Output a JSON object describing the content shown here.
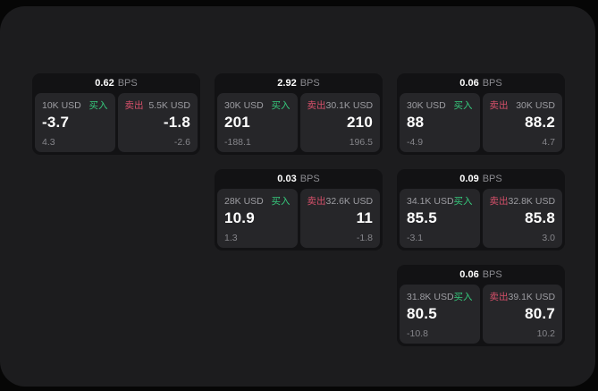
{
  "colors": {
    "page_background": "#060606",
    "window_background": "#1c1c1e",
    "card_background": "#121214",
    "panel_background": "#262629",
    "buy_accent": "#36c97c",
    "sell_accent": "#d6506a",
    "primary_text": "#ffffff",
    "muted_text": "#8b8b90"
  },
  "cards": [
    {
      "bps": "0.62",
      "unit": "BPS",
      "layout": {
        "row": 1,
        "col": 1
      },
      "buy": {
        "amount": "10K USD",
        "label": "买入",
        "value": "-3.7",
        "delta": "4.3"
      },
      "sell": {
        "label": "卖出",
        "amount": "5.5K USD",
        "value": "-1.8",
        "delta": "-2.6"
      }
    },
    {
      "bps": "2.92",
      "unit": "BPS",
      "layout": {
        "row": 1,
        "col": 2
      },
      "buy": {
        "amount": "30K USD",
        "label": "买入",
        "value": "201",
        "delta": "-188.1"
      },
      "sell": {
        "label": "卖出",
        "amount": "30.1K USD",
        "value": "210",
        "delta": "196.5"
      }
    },
    {
      "bps": "0.06",
      "unit": "BPS",
      "layout": {
        "row": 1,
        "col": 3
      },
      "buy": {
        "amount": "30K USD",
        "label": "买入",
        "value": "88",
        "delta": "-4.9"
      },
      "sell": {
        "label": "卖出",
        "amount": "30K USD",
        "value": "88.2",
        "delta": "4.7"
      }
    },
    {
      "bps": "0.03",
      "unit": "BPS",
      "layout": {
        "row": 2,
        "col": 2
      },
      "buy": {
        "amount": "28K USD",
        "label": "买入",
        "value": "10.9",
        "delta": "1.3"
      },
      "sell": {
        "label": "卖出",
        "amount": "32.6K USD",
        "value": "11",
        "delta": "-1.8"
      }
    },
    {
      "bps": "0.09",
      "unit": "BPS",
      "layout": {
        "row": 2,
        "col": 3
      },
      "buy": {
        "amount": "34.1K USD",
        "label": "买入",
        "value": "85.5",
        "delta": "-3.1"
      },
      "sell": {
        "label": "卖出",
        "amount": "32.8K USD",
        "value": "85.8",
        "delta": "3.0"
      }
    },
    {
      "bps": "0.06",
      "unit": "BPS",
      "layout": {
        "row": 3,
        "col": 3
      },
      "buy": {
        "amount": "31.8K USD",
        "label": "买入",
        "value": "80.5",
        "delta": "-10.8"
      },
      "sell": {
        "label": "卖出",
        "amount": "39.1K USD",
        "value": "80.7",
        "delta": "10.2"
      }
    }
  ]
}
